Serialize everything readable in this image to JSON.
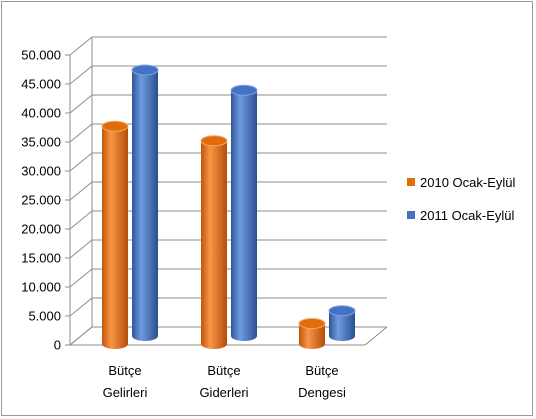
{
  "chart_data": {
    "type": "bar",
    "style": "3d-cylinder",
    "categories": [
      {
        "line1": "Bütçe",
        "line2": "Gelirleri"
      },
      {
        "line1": "Bütçe",
        "line2": "Giderleri"
      },
      {
        "line1": "Bütçe",
        "line2": "Dengesi"
      }
    ],
    "series": [
      {
        "name": "2010 Ocak-Eylül",
        "color": "#e36c0a",
        "values": [
          36500,
          34000,
          2500
        ]
      },
      {
        "name": "2011 Ocak-Eylül",
        "color": "#4472c4",
        "values": [
          45000,
          41500,
          3500
        ]
      }
    ],
    "yticks": [
      "0",
      "5.000",
      "10.000",
      "15.000",
      "20.000",
      "25.000",
      "30.000",
      "35.000",
      "40.000",
      "45.000",
      "50.000"
    ],
    "ylim": [
      0,
      50000
    ],
    "grid": true,
    "legend_position": "right"
  }
}
